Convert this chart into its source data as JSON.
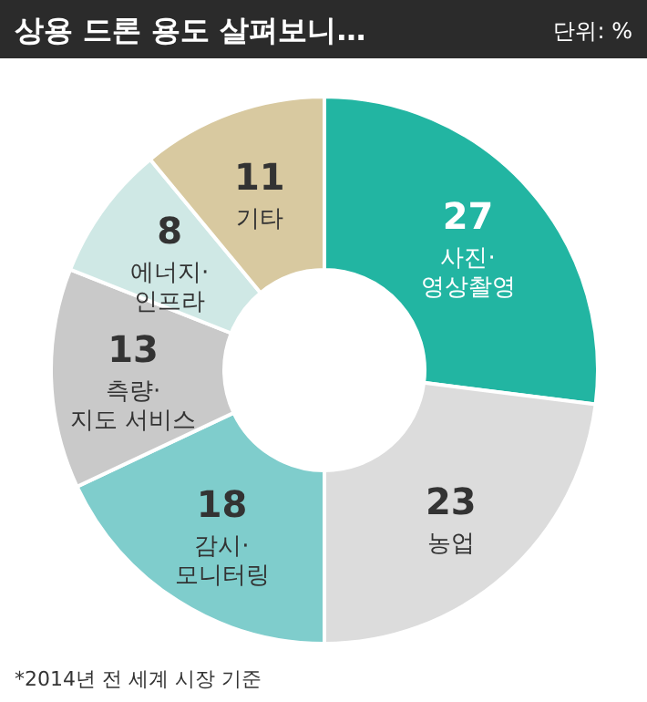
{
  "chart_data": {
    "type": "donut",
    "title": "상용 드론 용도 살펴보니…",
    "subtitle": "단위: %",
    "categories": [
      "사진·\n영상촬영",
      "농업",
      "감시·\n모니터링",
      "측량·\n지도 서비스",
      "에너지·\n인프라",
      "기타"
    ],
    "values": [
      27,
      23,
      18,
      13,
      8,
      11
    ],
    "colors": [
      "#22b5a2",
      "#dcdcdc",
      "#7fcdcc",
      "#c9c9c9",
      "#cfe8e5",
      "#d8c9a0"
    ],
    "data_labels": true,
    "annotations": [
      "*2014년 전 세계 시장 기준"
    ]
  }
}
